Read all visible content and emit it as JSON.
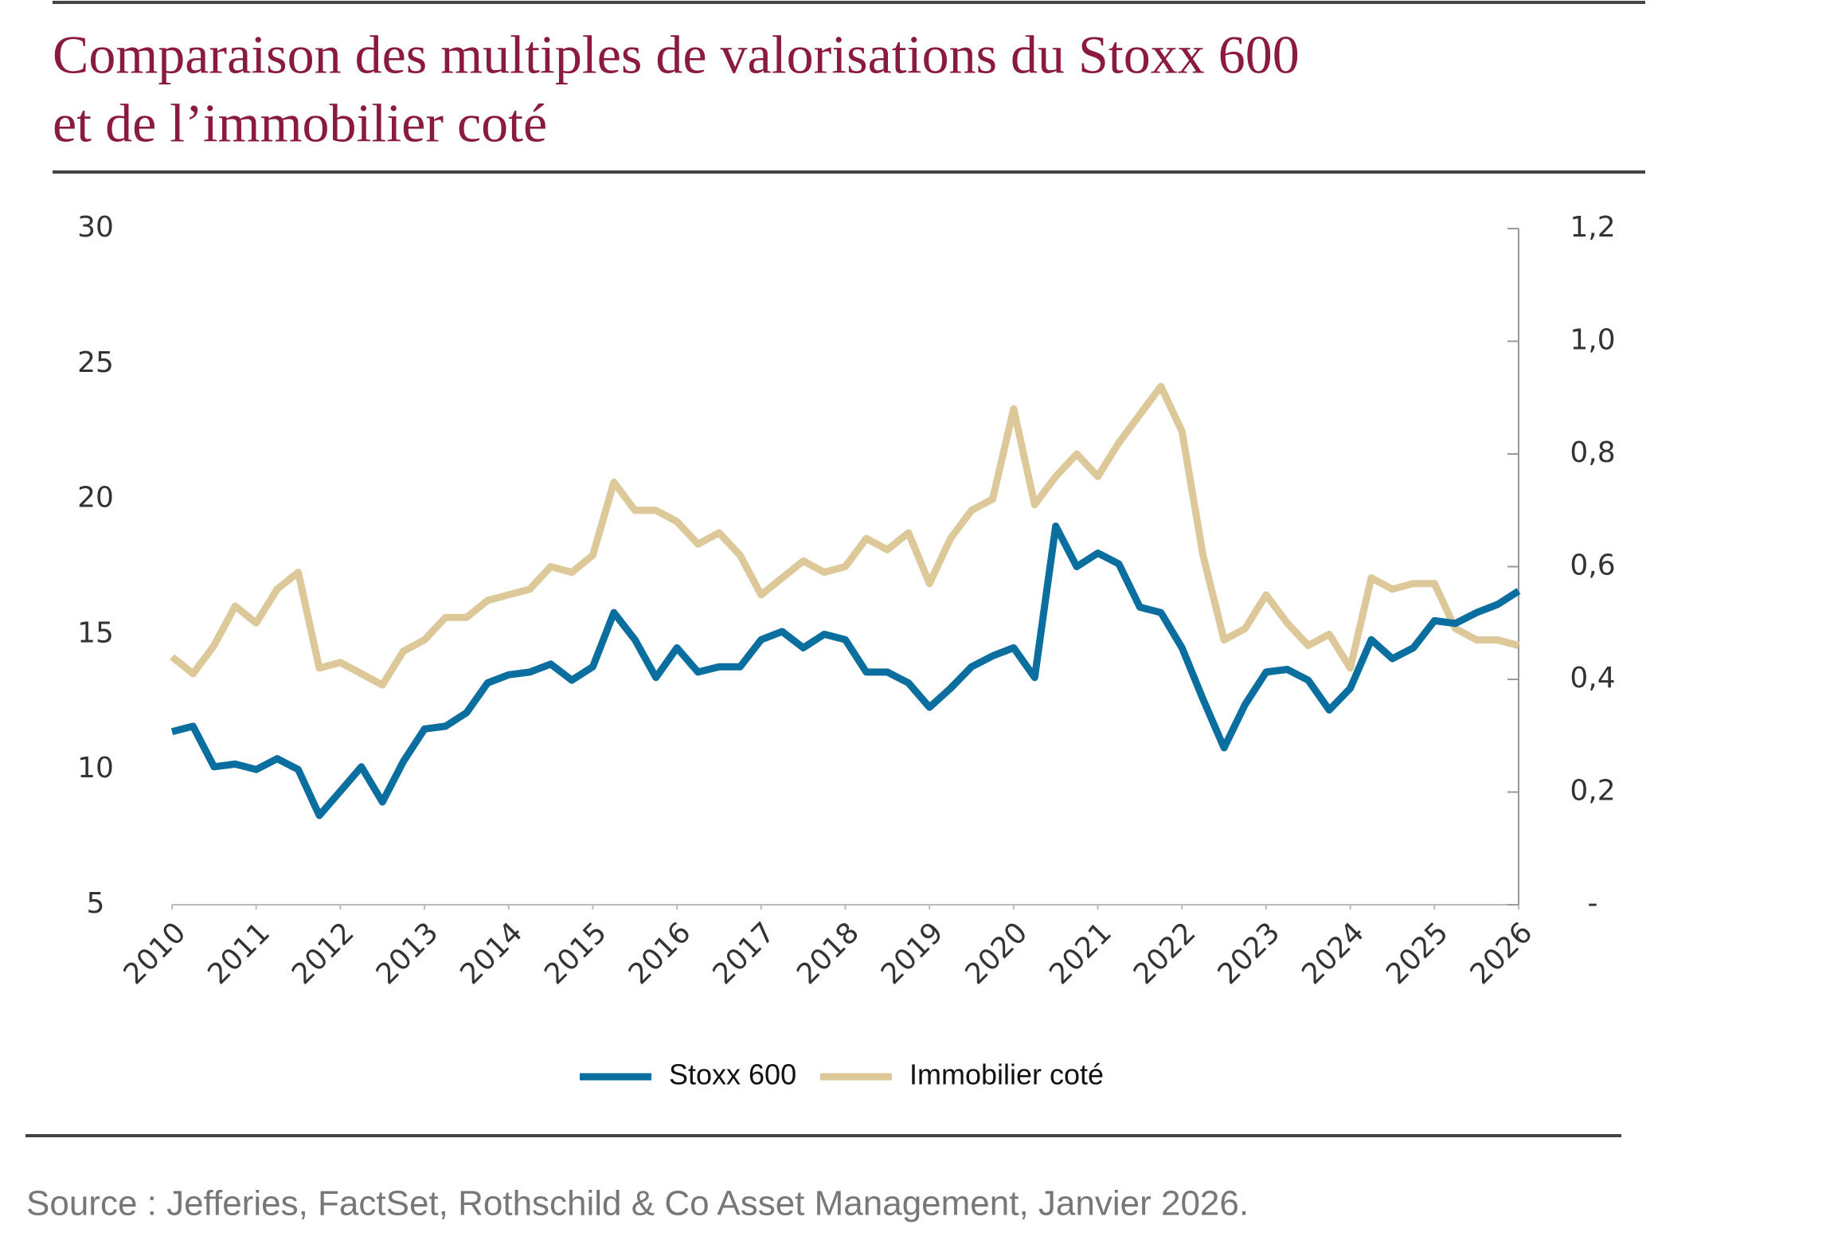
{
  "chart_data": {
    "type": "line",
    "title": [
      "Comparaison des multiples de valorisations du Stoxx 600",
      "et de l’immobilier coté"
    ],
    "source": "Source : Jefferies, FactSet, Rothschild & Co Asset Management, Janvier 2026.",
    "x": [
      2010,
      2010.25,
      2010.5,
      2010.75,
      2011,
      2011.25,
      2011.5,
      2011.75,
      2012,
      2012.25,
      2012.5,
      2012.75,
      2013,
      2013.25,
      2013.5,
      2013.75,
      2014,
      2014.25,
      2014.5,
      2014.75,
      2015,
      2015.25,
      2015.5,
      2015.75,
      2016,
      2016.25,
      2016.5,
      2016.75,
      2017,
      2017.25,
      2017.5,
      2017.75,
      2018,
      2018.25,
      2018.5,
      2018.75,
      2019,
      2019.25,
      2019.5,
      2019.75,
      2020,
      2020.25,
      2020.5,
      2020.75,
      2021,
      2021.25,
      2021.5,
      2021.75,
      2022,
      2022.25,
      2022.5,
      2022.75,
      2023,
      2023.25,
      2023.5,
      2023.75,
      2024,
      2024.25,
      2024.5,
      2024.75,
      2025,
      2025.25,
      2025.5,
      2025.75,
      2026
    ],
    "xlim": [
      2010,
      2026
    ],
    "xticks": [
      2010,
      2011,
      2012,
      2013,
      2014,
      2015,
      2016,
      2017,
      2018,
      2019,
      2020,
      2021,
      2022,
      2023,
      2024,
      2025,
      2026
    ],
    "ylim": [
      5,
      30
    ],
    "yticks": [
      5,
      10,
      15,
      20,
      25,
      30
    ],
    "y2lim": [
      0,
      1.2
    ],
    "y2ticks": [
      {
        "value": 0,
        "label": "-"
      },
      {
        "value": 0.2,
        "label": "0,2"
      },
      {
        "value": 0.4,
        "label": "0,4"
      },
      {
        "value": 0.6,
        "label": "0,6"
      },
      {
        "value": 0.8,
        "label": "0,8"
      },
      {
        "value": 1.0,
        "label": "1,0"
      },
      {
        "value": 1.2,
        "label": "1,2"
      }
    ],
    "legend": "bottom",
    "series": [
      {
        "name": "Stoxx 600",
        "color": "#0a6e9e",
        "values": [
          11.4,
          11.6,
          10.1,
          10.2,
          10.0,
          10.4,
          10.0,
          8.3,
          9.2,
          10.1,
          8.8,
          10.3,
          11.5,
          11.6,
          12.1,
          13.2,
          13.5,
          13.6,
          13.9,
          13.3,
          13.8,
          15.8,
          14.8,
          13.4,
          14.5,
          13.6,
          13.8,
          13.8,
          14.8,
          15.1,
          14.5,
          15.0,
          14.8,
          13.6,
          13.6,
          13.2,
          12.3,
          13.0,
          13.8,
          14.2,
          14.5,
          13.4,
          19.0,
          17.5,
          18.0,
          17.6,
          16.0,
          15.8,
          14.5,
          12.6,
          10.8,
          12.4,
          13.6,
          13.7,
          13.3,
          12.2,
          13.0,
          14.8,
          14.1,
          14.5,
          15.5,
          15.4,
          15.8,
          16.1,
          16.6
        ]
      },
      {
        "name": "Immobilier coté",
        "color": "#dcc898",
        "axis": "y2",
        "values": [
          0.44,
          0.41,
          0.46,
          0.53,
          0.5,
          0.56,
          0.59,
          0.42,
          0.43,
          0.41,
          0.39,
          0.45,
          0.47,
          0.51,
          0.51,
          0.54,
          0.55,
          0.56,
          0.6,
          0.59,
          0.62,
          0.75,
          0.7,
          0.7,
          0.68,
          0.64,
          0.66,
          0.62,
          0.55,
          0.58,
          0.61,
          0.59,
          0.6,
          0.65,
          0.63,
          0.66,
          0.57,
          0.65,
          0.7,
          0.72,
          0.88,
          0.71,
          0.76,
          0.8,
          0.76,
          0.82,
          0.87,
          0.92,
          0.84,
          0.62,
          0.47,
          0.49,
          0.55,
          0.5,
          0.46,
          0.48,
          0.42,
          0.58,
          0.56,
          0.57,
          0.57,
          0.49,
          0.47,
          0.47,
          0.46
        ]
      }
    ]
  }
}
